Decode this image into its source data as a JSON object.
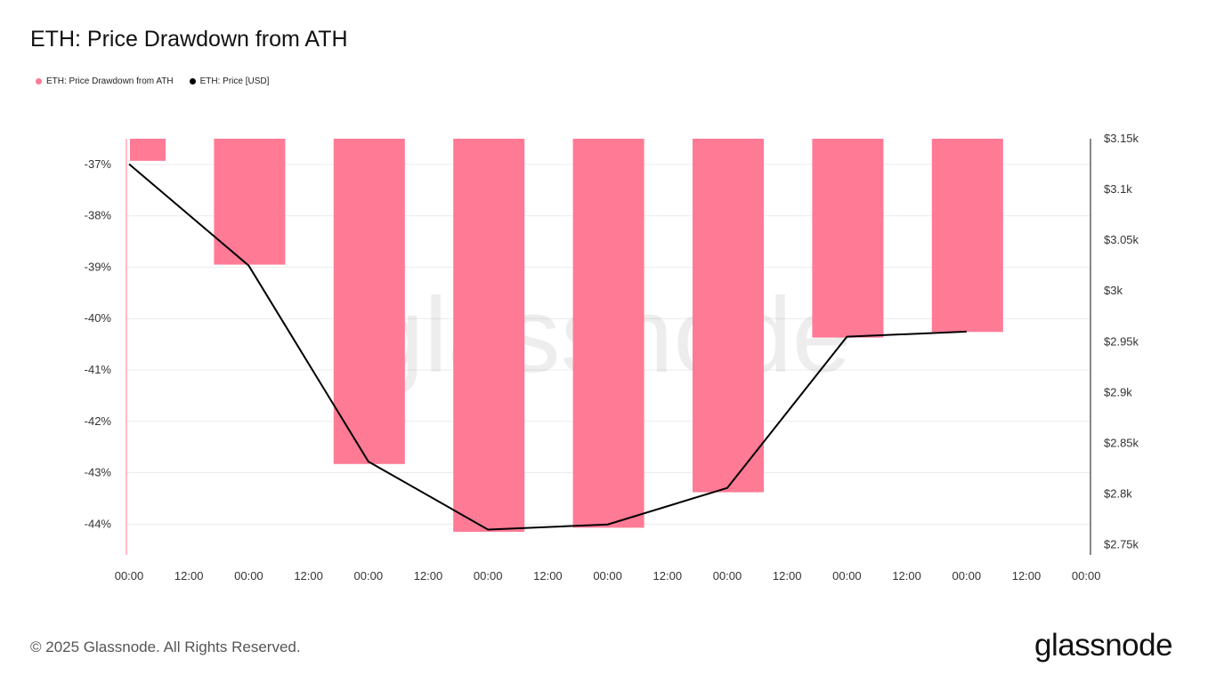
{
  "title": "ETH: Price Drawdown from ATH",
  "legend": [
    {
      "label": "ETH: Price Drawdown from ATH",
      "color": "#ff7a95"
    },
    {
      "label": "ETH: Price [USD]",
      "color": "#000000"
    }
  ],
  "footer": "© 2025 Glassnode. All Rights Reserved.",
  "brand": "glassnode",
  "watermark": "glassnode",
  "chart_data": {
    "type": "bar",
    "x_labels": [
      "00:00",
      "12:00",
      "00:00",
      "12:00",
      "00:00",
      "12:00",
      "00:00",
      "12:00",
      "00:00",
      "12:00",
      "00:00",
      "12:00",
      "00:00",
      "12:00",
      "00:00",
      "12:00",
      "00:00"
    ],
    "left_axis": {
      "ticks": [
        "-37%",
        "-38%",
        "-39%",
        "-40%",
        "-41%",
        "-42%",
        "-43%",
        "-44%"
      ],
      "tick_values": [
        -37,
        -38,
        -39,
        -40,
        -41,
        -42,
        -43,
        -44
      ],
      "range": [
        -44.6,
        -36.5
      ]
    },
    "right_axis": {
      "ticks": [
        "$3.15k",
        "$3.1k",
        "$3.05k",
        "$3k",
        "$2.95k",
        "$2.9k",
        "$2.85k",
        "$2.8k",
        "$2.75k"
      ],
      "tick_values": [
        3150,
        3100,
        3050,
        3000,
        2950,
        2900,
        2850,
        2800,
        2750
      ],
      "range": [
        2740,
        3150
      ]
    },
    "series": [
      {
        "name": "ETH: Price Drawdown from ATH",
        "type": "bar",
        "color": "#ff7a95",
        "x_index": [
          0,
          2,
          4,
          6,
          8,
          10,
          12,
          14
        ],
        "values": [
          -36.93,
          -38.95,
          -42.83,
          -44.15,
          -44.07,
          -43.38,
          -40.37,
          -40.26
        ]
      },
      {
        "name": "ETH: Price [USD]",
        "type": "line",
        "color": "#000000",
        "x_index": [
          0,
          2,
          4,
          6,
          8,
          10,
          12,
          14
        ],
        "values": [
          3125,
          3025,
          2832,
          2765,
          2770,
          2806,
          2955,
          2960
        ]
      }
    ],
    "grid": "horizontal",
    "legend_position": "top-left"
  }
}
